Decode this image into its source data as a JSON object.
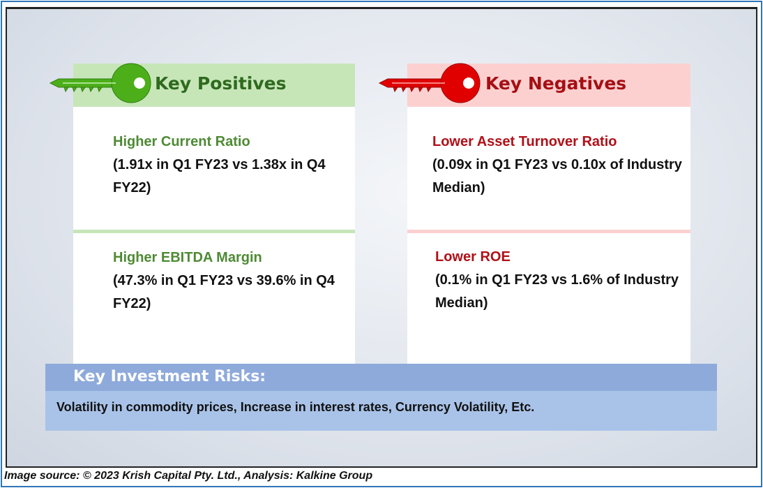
{
  "positives": {
    "heading": "Key Positives",
    "icon": "key-icon",
    "accent_color": "#4caf1a",
    "items": [
      {
        "title": "Higher Current Ratio",
        "detail": "(1.91x in Q1 FY23 vs 1.38x in Q4 FY22)"
      },
      {
        "title": "Higher EBITDA Margin",
        "detail": "(47.3% in Q1 FY23 vs 39.6% in Q4 FY22)"
      }
    ]
  },
  "negatives": {
    "heading": "Key Negatives",
    "icon": "key-icon",
    "accent_color": "#e00000",
    "items": [
      {
        "title": "Lower Asset Turnover Ratio",
        "detail": "(0.09x in Q1 FY23 vs 0.10x of Industry Median)"
      },
      {
        "title": "Lower ROE",
        "detail": "(0.1% in Q1 FY23 vs 1.6% of Industry Median)"
      }
    ]
  },
  "risks": {
    "heading": "Key Investment Risks:",
    "text": "Volatility in commodity prices, Increase in interest rates, Currency Volatility, Etc."
  },
  "source": "Image source: © 2023 Krish Capital Pty. Ltd., Analysis: Kalkine Group"
}
